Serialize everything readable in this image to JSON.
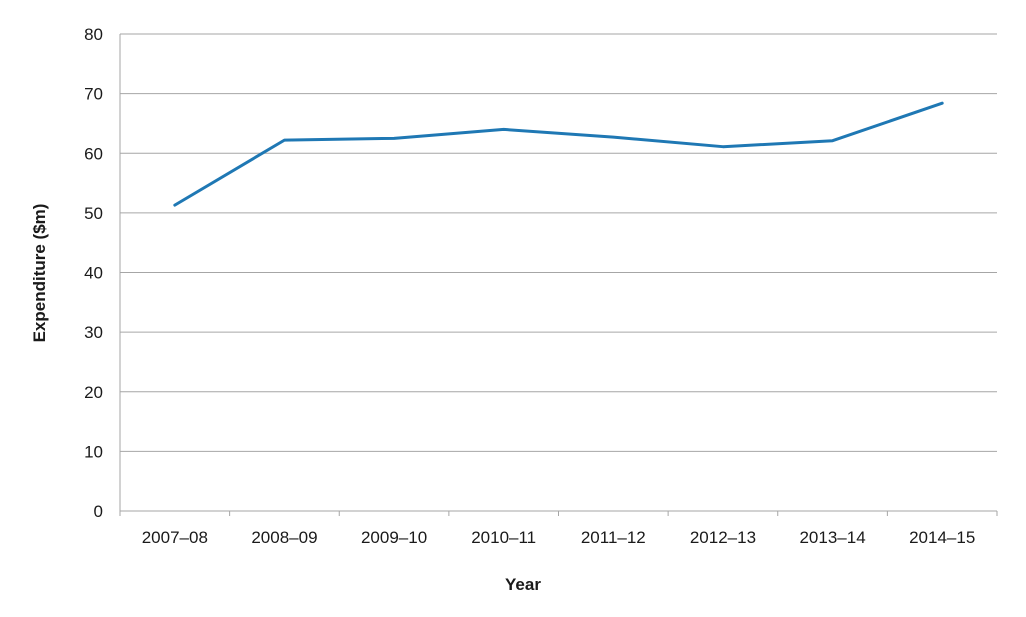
{
  "chart_data": {
    "type": "line",
    "title": "",
    "xlabel": "Year",
    "ylabel": "Expenditure ($m)",
    "categories": [
      "2007–08",
      "2008–09",
      "2009–10",
      "2010–11",
      "2011–12",
      "2012–13",
      "2013–14",
      "2014–15"
    ],
    "series": [
      {
        "values": [
          51.3,
          62.2,
          62.5,
          64.0,
          62.7,
          61.1,
          62.1,
          68.4
        ],
        "color": "#1f78b4"
      }
    ],
    "ylim": [
      0,
      80
    ],
    "yticks": [
      0,
      10,
      20,
      30,
      40,
      50,
      60,
      70,
      80
    ],
    "grid": true,
    "legend": "none"
  }
}
